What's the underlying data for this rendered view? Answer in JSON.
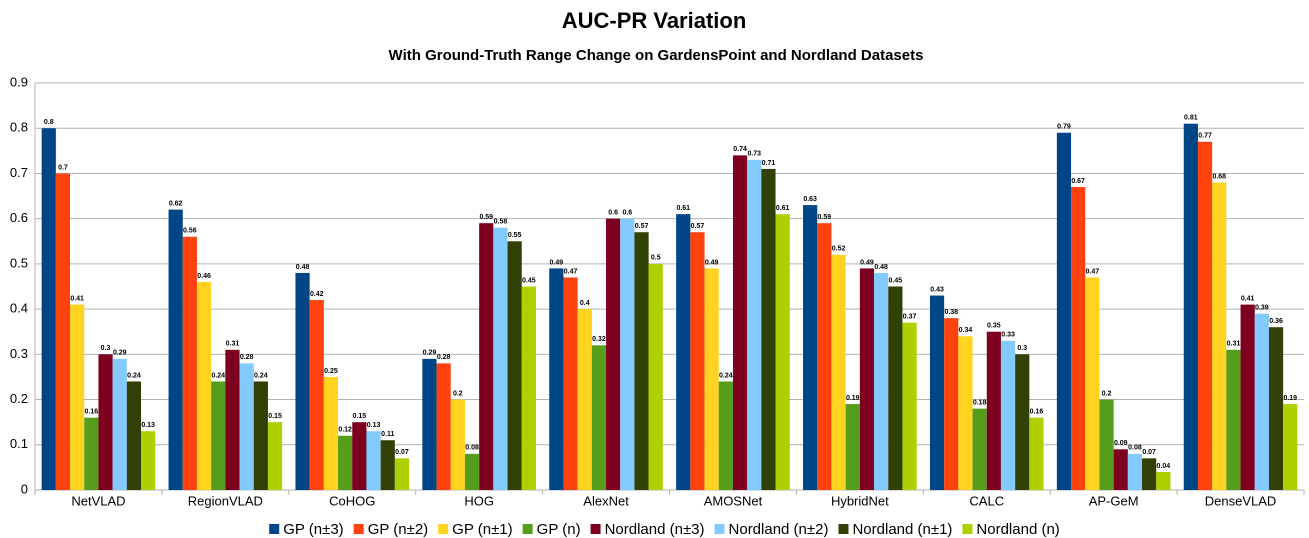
{
  "chart_data": {
    "type": "bar",
    "title": "AUC-PR Variation",
    "subtitle": "With Ground-Truth Range Change on GardensPoint and Nordland Datasets",
    "categories": [
      "NetVLAD",
      "RegionVLAD",
      "CoHOG",
      "HOG",
      "AlexNet",
      "AMOSNet",
      "HybridNet",
      "CALC",
      "AP-GeM",
      "DenseVLAD"
    ],
    "series": [
      {
        "name": "GP (n±3)",
        "color": "#004586",
        "values": [
          0.8,
          0.62,
          0.48,
          0.29,
          0.49,
          0.61,
          0.63,
          0.43,
          0.79,
          0.81
        ]
      },
      {
        "name": "GP (n±2)",
        "color": "#ff420e",
        "values": [
          0.7,
          0.56,
          0.42,
          0.28,
          0.47,
          0.57,
          0.59,
          0.38,
          0.67,
          0.77
        ]
      },
      {
        "name": "GP (n±1)",
        "color": "#ffd320",
        "values": [
          0.41,
          0.46,
          0.25,
          0.2,
          0.4,
          0.49,
          0.52,
          0.34,
          0.47,
          0.68
        ]
      },
      {
        "name": "GP (n)",
        "color": "#579d1c",
        "values": [
          0.16,
          0.24,
          0.12,
          0.08,
          0.32,
          0.24,
          0.19,
          0.18,
          0.2,
          0.31
        ]
      },
      {
        "name": "Nordland (n±3)",
        "color": "#7e0021",
        "values": [
          0.3,
          0.31,
          0.15,
          0.59,
          0.6,
          0.74,
          0.49,
          0.35,
          0.09,
          0.41
        ]
      },
      {
        "name": "Nordland (n±2)",
        "color": "#83caff",
        "values": [
          0.29,
          0.28,
          0.13,
          0.58,
          0.6,
          0.73,
          0.48,
          0.33,
          0.08,
          0.39
        ]
      },
      {
        "name": "Nordland (n±1)",
        "color": "#314004",
        "values": [
          0.24,
          0.24,
          0.11,
          0.55,
          0.57,
          0.71,
          0.45,
          0.3,
          0.07,
          0.36
        ]
      },
      {
        "name": "Nordland (n)",
        "color": "#aecf00",
        "values": [
          0.13,
          0.15,
          0.07,
          0.45,
          0.5,
          0.61,
          0.37,
          0.16,
          0.04,
          0.19
        ]
      }
    ],
    "ylim": [
      0,
      0.9
    ],
    "yticks": [
      0,
      0.1,
      0.2,
      0.3,
      0.4,
      0.5,
      0.6,
      0.7,
      0.8,
      0.9
    ],
    "grid": true,
    "legend": "bottom"
  }
}
